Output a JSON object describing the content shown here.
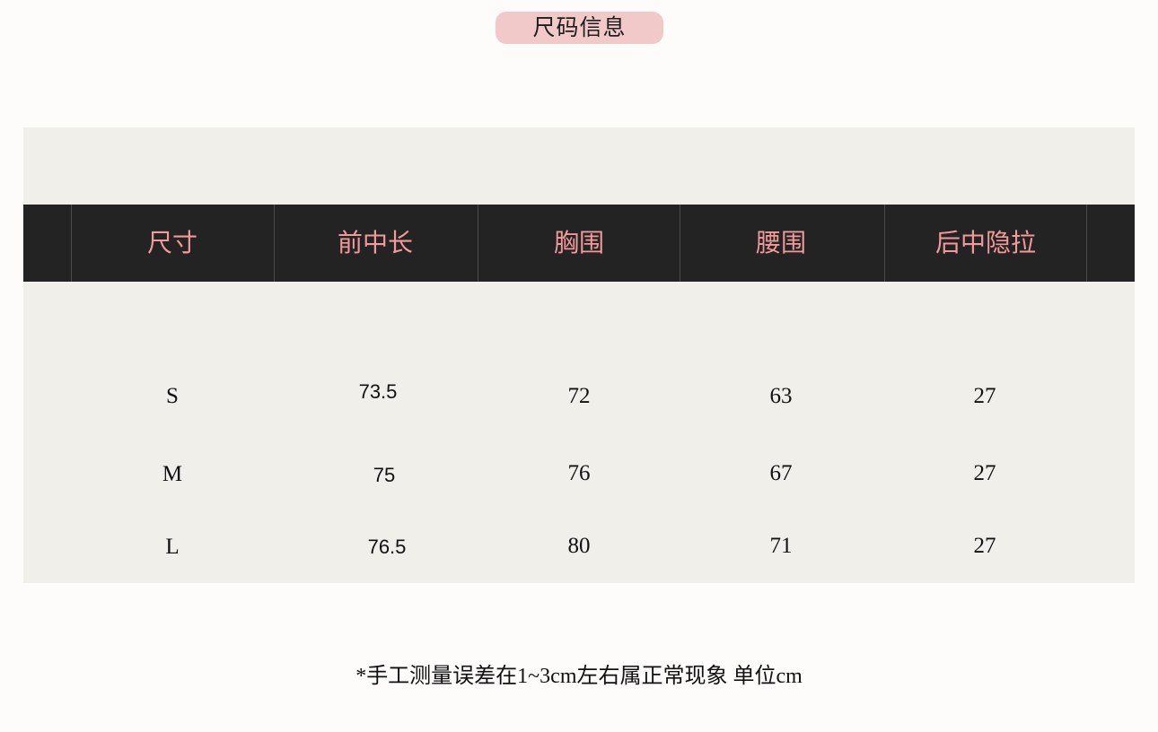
{
  "title": "尺码信息",
  "colors": {
    "title_bg": "#f2c9c9",
    "header_bg": "#232323",
    "header_text": "#f29a9a",
    "panel_bg": "#f1efea"
  },
  "table": {
    "headers": [
      "尺寸",
      "前中长",
      "胸围",
      "腰围",
      "后中隐拉"
    ],
    "rows": [
      [
        "S",
        "73.5",
        "72",
        "63",
        "27"
      ],
      [
        "M",
        "75",
        "76",
        "67",
        "27"
      ],
      [
        "L",
        "76.5",
        "80",
        "71",
        "27"
      ]
    ]
  },
  "note": "*手工测量误差在1~3cm左右属正常现象 单位cm"
}
